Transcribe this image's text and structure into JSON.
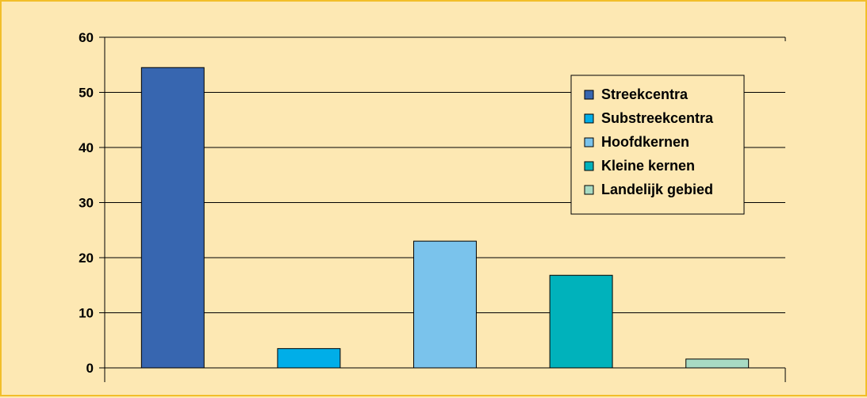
{
  "chart_data": {
    "type": "bar",
    "categories": [
      "Streekcentra",
      "Substreekcentra",
      "Hoofdkernen",
      "Kleine kernen",
      "Landelijk gebied"
    ],
    "values": [
      54.5,
      3.5,
      23,
      16.8,
      1.6
    ],
    "colors": [
      "#3766b0",
      "#00aee8",
      "#7ac3ec",
      "#00b2bb",
      "#a8dbc3"
    ],
    "title": "",
    "xlabel": "",
    "ylabel": "",
    "ylim": [
      0,
      60
    ],
    "yticks": [
      "0",
      "10",
      "20",
      "30",
      "40",
      "50",
      "60"
    ],
    "grid": true,
    "legend_position": "top-right",
    "background_color": "#fde8b3",
    "frame_color": "#f2be2a"
  }
}
